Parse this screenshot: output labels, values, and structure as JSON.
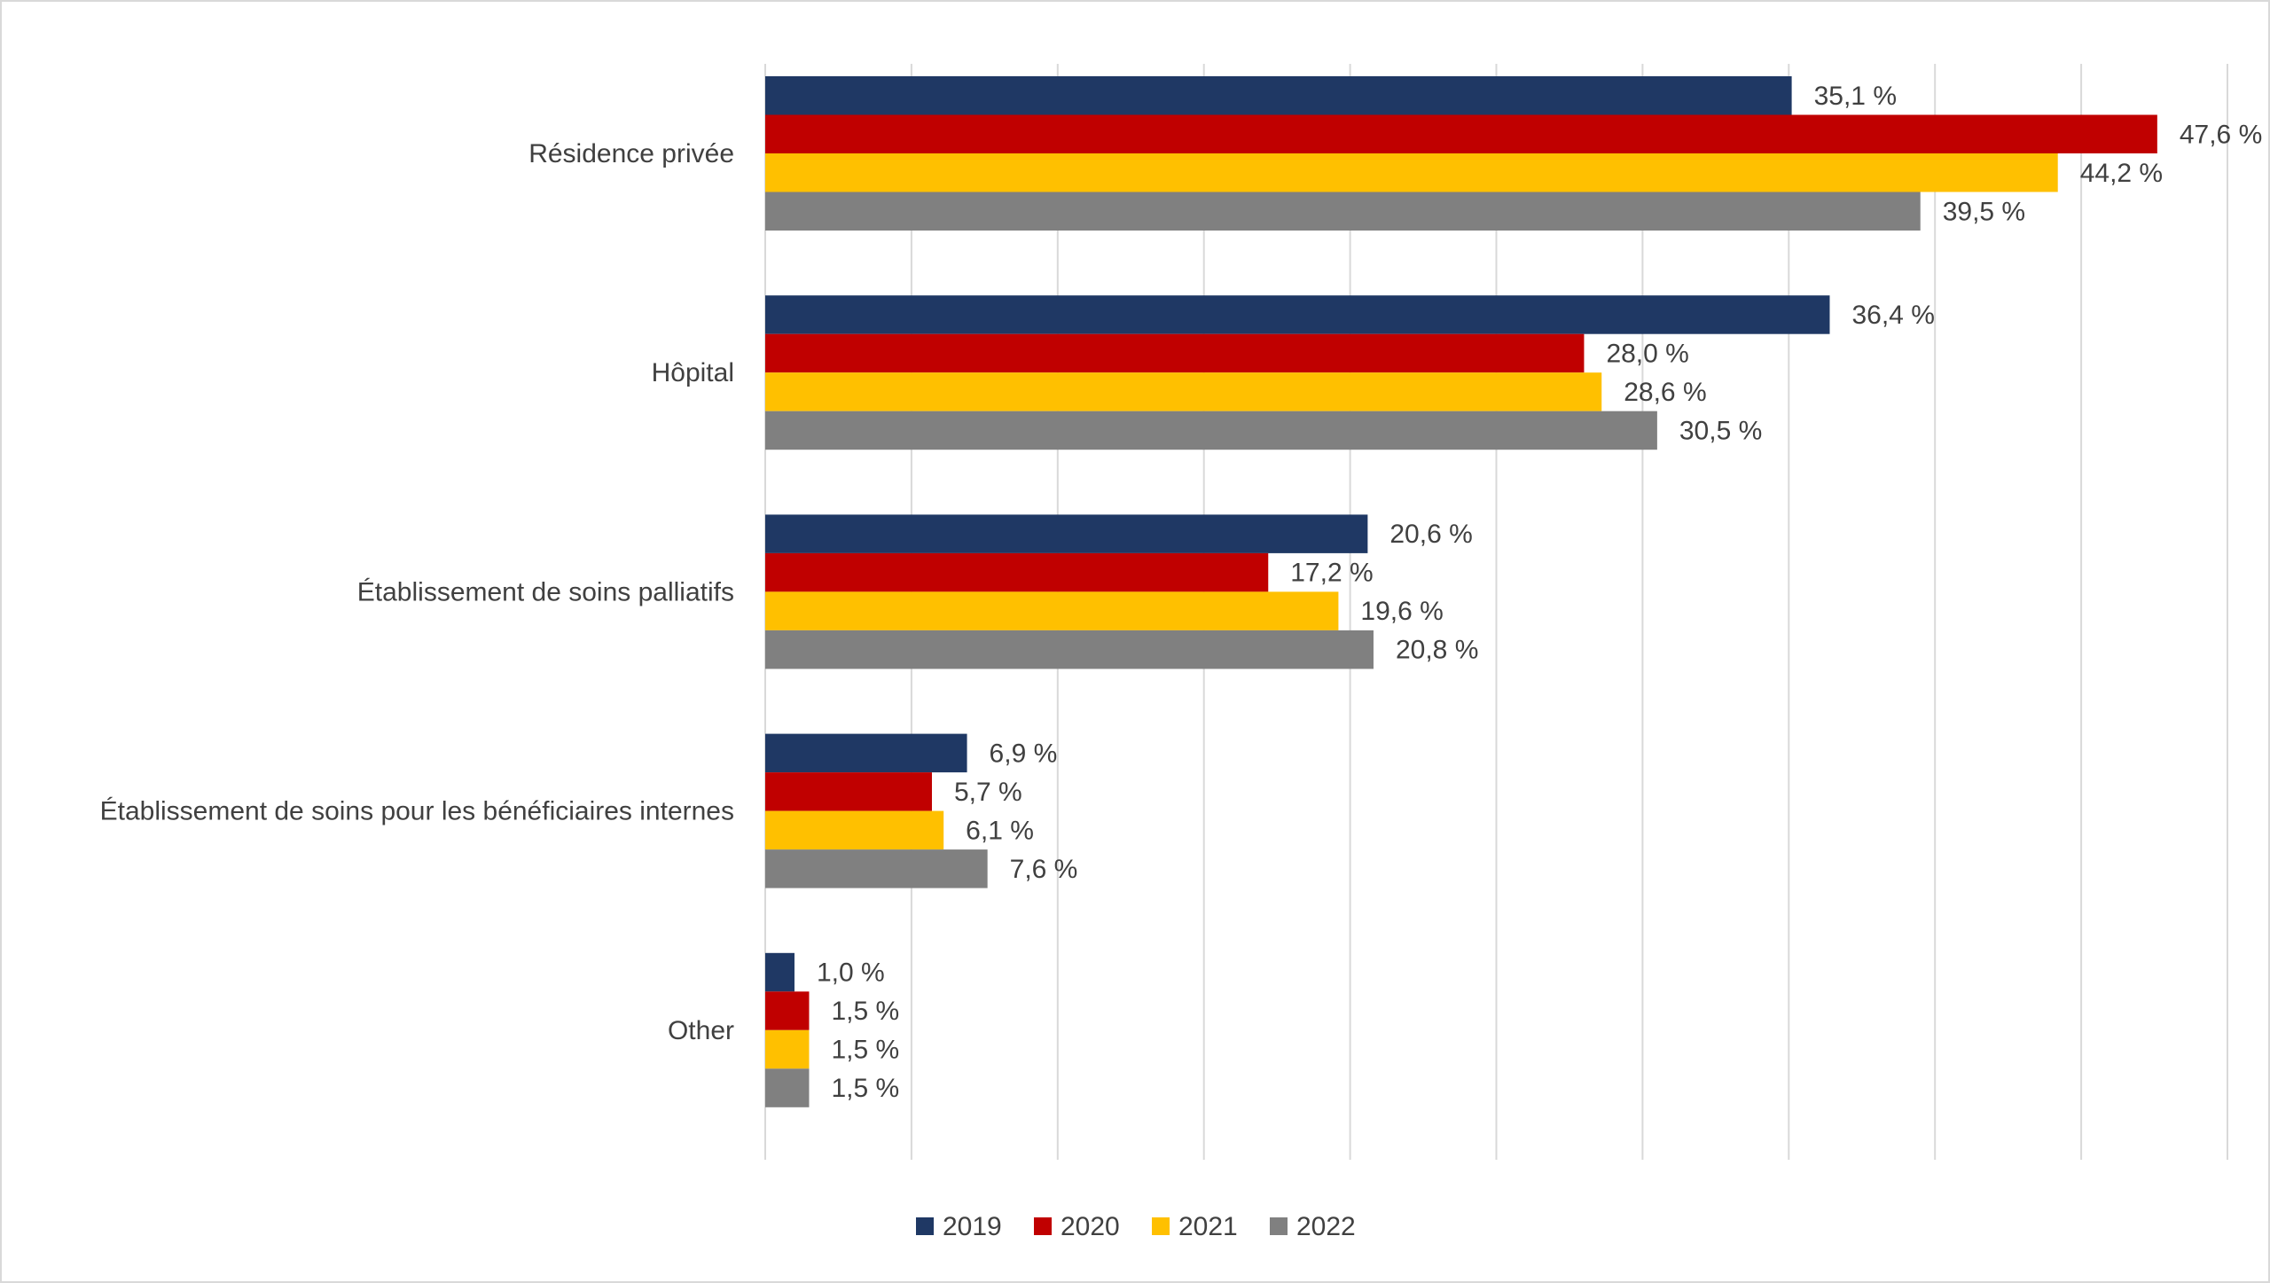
{
  "chart_data": {
    "type": "bar",
    "orientation": "horizontal",
    "categories": [
      "Résidence privée",
      "Hôpital",
      "Établissement de soins palliatifs",
      "Établissement de soins pour les bénéficiaires internes",
      "Other"
    ],
    "series": [
      {
        "name": "2019",
        "color": "#1f3864",
        "values": [
          35.1,
          36.4,
          20.6,
          6.9,
          1.0
        ],
        "labels": [
          "35,1 %",
          "36,4 %",
          "20,6 %",
          "6,9 %",
          "1,0 %"
        ]
      },
      {
        "name": "2020",
        "color": "#c00000",
        "values": [
          47.6,
          28.0,
          17.2,
          5.7,
          1.5
        ],
        "labels": [
          "47,6 %",
          "28,0 %",
          "17,2 %",
          "5,7 %",
          "1,5 %"
        ]
      },
      {
        "name": "2021",
        "color": "#ffc000",
        "values": [
          44.2,
          28.6,
          19.6,
          6.1,
          1.5
        ],
        "labels": [
          "44,2 %",
          "28,6 %",
          "19,6 %",
          "6,1 %",
          "1,5 %"
        ]
      },
      {
        "name": "2022",
        "color": "#808080",
        "values": [
          39.5,
          30.5,
          20.8,
          7.6,
          1.5
        ],
        "labels": [
          "39,5 %",
          "30,5 %",
          "20,8 %",
          "7,6 %",
          "1,5 %"
        ]
      }
    ],
    "xlim": [
      0,
      50
    ],
    "grid": true,
    "legend_position": "bottom",
    "title": "",
    "xlabel": "",
    "ylabel": ""
  }
}
